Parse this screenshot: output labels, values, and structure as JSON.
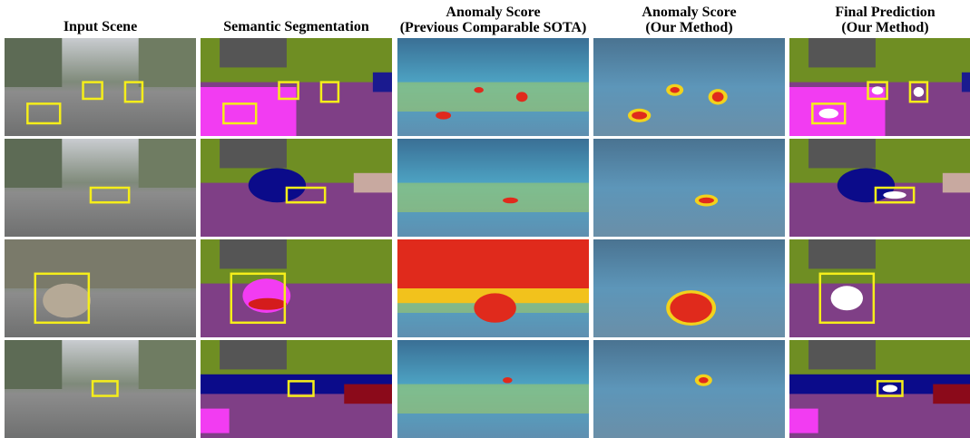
{
  "header": {
    "columns": [
      {
        "lines": [
          "Input Scene"
        ]
      },
      {
        "lines": [
          "Semantic Segmentation"
        ]
      },
      {
        "lines": [
          "Anomaly Score",
          "(Previous Comparable SOTA)"
        ]
      },
      {
        "lines": [
          "Anomaly Score",
          "(Our Method)"
        ]
      },
      {
        "lines": [
          "Final Prediction",
          "(Our Method)"
        ]
      }
    ]
  }
}
